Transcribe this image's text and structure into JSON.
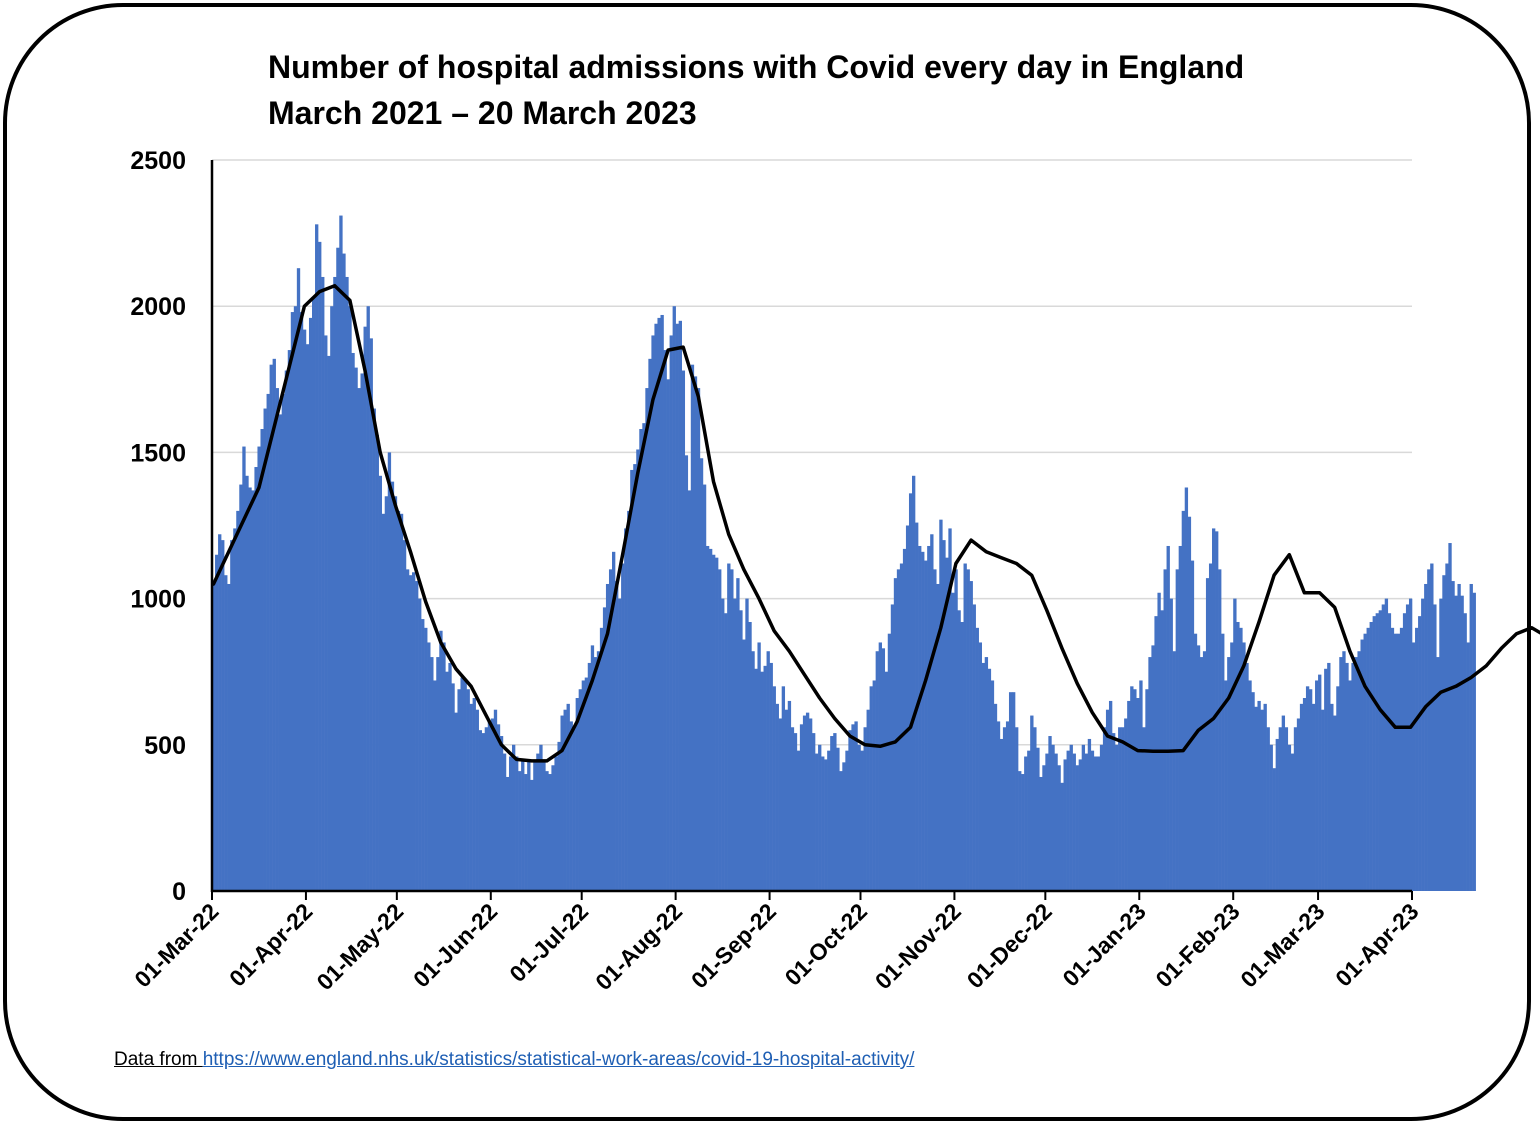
{
  "title_line1": "Number of hospital admissions with Covid every day in England",
  "title_line2": "March 2021 – 20 March 2023",
  "source": {
    "label": "Data from ",
    "url_text": "https://www.england.nhs.uk/statistics/statistical-work-areas/covid-19-hospital-activity/"
  },
  "colors": {
    "bars": "#4472C4",
    "line": "#000000",
    "grid": "#d9d9d9"
  },
  "chart_data": {
    "type": "bar",
    "overlay": "line (rolling average)",
    "x_range": [
      "2022-03-01",
      "2023-04-01"
    ],
    "bars_through": "2023-03-20",
    "ylim": [
      0,
      2500
    ],
    "y_ticks": [
      "0",
      "500",
      "1000",
      "1500",
      "2000",
      "2500"
    ],
    "x_ticks": [
      {
        "date": "2022-03-01",
        "label": "01-Mar-22"
      },
      {
        "date": "2022-04-01",
        "label": "01-Apr-22"
      },
      {
        "date": "2022-05-01",
        "label": "01-May-22"
      },
      {
        "date": "2022-06-01",
        "label": "01-Jun-22"
      },
      {
        "date": "2022-07-01",
        "label": "01-Jul-22"
      },
      {
        "date": "2022-08-01",
        "label": "01-Aug-22"
      },
      {
        "date": "2022-09-01",
        "label": "01-Sep-22"
      },
      {
        "date": "2022-10-01",
        "label": "01-Oct-22"
      },
      {
        "date": "2022-11-01",
        "label": "01-Nov-22"
      },
      {
        "date": "2022-12-01",
        "label": "01-Dec-22"
      },
      {
        "date": "2023-01-01",
        "label": "01-Jan-23"
      },
      {
        "date": "2023-02-01",
        "label": "01-Feb-23"
      },
      {
        "date": "2023-03-01",
        "label": "01-Mar-23"
      },
      {
        "date": "2023-04-01",
        "label": "01-Apr-23"
      }
    ],
    "grid": true,
    "legend": "none",
    "daily_admissions_approx": [
      1050,
      1150,
      1220,
      1200,
      1080,
      1050,
      1200,
      1240,
      1300,
      1390,
      1520,
      1420,
      1380,
      1370,
      1450,
      1520,
      1580,
      1650,
      1700,
      1800,
      1820,
      1720,
      1630,
      1700,
      1780,
      1850,
      1980,
      2000,
      2130,
      1980,
      1920,
      1870,
      1960,
      2030,
      2280,
      2220,
      2100,
      1900,
      1830,
      2000,
      2100,
      2200,
      2310,
      2180,
      2100,
      2000,
      1840,
      1790,
      1720,
      1770,
      1930,
      2000,
      1890,
      1650,
      1560,
      1420,
      1290,
      1350,
      1500,
      1400,
      1350,
      1300,
      1290,
      1200,
      1100,
      1080,
      1090,
      1060,
      1000,
      930,
      900,
      850,
      800,
      720,
      800,
      890,
      850,
      750,
      780,
      710,
      610,
      690,
      730,
      720,
      690,
      640,
      660,
      620,
      550,
      540,
      560,
      580,
      590,
      620,
      570,
      530,
      470,
      390,
      460,
      500,
      460,
      410,
      450,
      400,
      450,
      380,
      440,
      470,
      500,
      450,
      410,
      400,
      430,
      460,
      510,
      600,
      620,
      640,
      580,
      560,
      660,
      690,
      720,
      730,
      780,
      840,
      800,
      820,
      900,
      970,
      1050,
      1100,
      1160,
      1060,
      1000,
      1120,
      1240,
      1300,
      1440,
      1460,
      1510,
      1580,
      1600,
      1720,
      1820,
      1900,
      1940,
      1960,
      1970,
      1850,
      1750,
      1900,
      2000,
      1940,
      1950,
      1780,
      1490,
      1370,
      1800,
      1760,
      1720,
      1480,
      1390,
      1180,
      1170,
      1150,
      1140,
      1100,
      1000,
      950,
      1120,
      1100,
      1000,
      1070,
      960,
      860,
      1000,
      920,
      820,
      760,
      850,
      750,
      770,
      820,
      780,
      700,
      640,
      590,
      700,
      620,
      650,
      560,
      540,
      480,
      570,
      600,
      610,
      590,
      540,
      470,
      500,
      460,
      450,
      480,
      530,
      540,
      490,
      410,
      440,
      480,
      550,
      570,
      580,
      500,
      480,
      560,
      620,
      700,
      720,
      820,
      850,
      830,
      750,
      880,
      980,
      1070,
      1100,
      1120,
      1170,
      1250,
      1360,
      1420,
      1260,
      1180,
      1160,
      1130,
      1180,
      1220,
      1100,
      1050,
      1270,
      1200,
      1140,
      1240,
      1020,
      1100,
      960,
      920,
      1120,
      1100,
      1060,
      980,
      900,
      850,
      780,
      800,
      760,
      720,
      640,
      580,
      520,
      560,
      580,
      680,
      680,
      560,
      410,
      400,
      460,
      480,
      600,
      560,
      490,
      390,
      430,
      470,
      530,
      500,
      470,
      430,
      370,
      450,
      480,
      500,
      470,
      430,
      450,
      500,
      470,
      520,
      480,
      460,
      460,
      500,
      560,
      620,
      650,
      540,
      500,
      560,
      560,
      590,
      650,
      700,
      690,
      660,
      720,
      560,
      690,
      800,
      840,
      940,
      1020,
      960,
      1100,
      1180,
      1000,
      820,
      1100,
      1180,
      1300,
      1380,
      1280,
      1130,
      880,
      840,
      800,
      820,
      1070,
      1120,
      1240,
      1230,
      1100,
      880,
      720,
      800,
      850,
      1000,
      920,
      900,
      850,
      780,
      720,
      680,
      630,
      650,
      620,
      640,
      560,
      500,
      420,
      520,
      560,
      600,
      560,
      500,
      470,
      560,
      590,
      640,
      660,
      700,
      690,
      640,
      720,
      740,
      620,
      760,
      780,
      640,
      600,
      700,
      800,
      820,
      780,
      720,
      780,
      800,
      820,
      860,
      880,
      900,
      920,
      940,
      950,
      960,
      980,
      1000,
      950,
      900,
      880,
      880,
      900,
      950,
      980,
      1000,
      850,
      900,
      940,
      1000,
      1050,
      1100,
      1120,
      980,
      800,
      1000,
      1080,
      1120,
      1190,
      1060,
      1010,
      1050,
      1010,
      950,
      850,
      1050,
      1020
    ],
    "rolling_average_approx": [
      [
        0,
        1050
      ],
      [
        15,
        1380
      ],
      [
        30,
        2000
      ],
      [
        35,
        2050
      ],
      [
        40,
        2070
      ],
      [
        45,
        2020
      ],
      [
        50,
        1780
      ],
      [
        55,
        1500
      ],
      [
        60,
        1320
      ],
      [
        65,
        1160
      ],
      [
        70,
        990
      ],
      [
        75,
        850
      ],
      [
        80,
        760
      ],
      [
        85,
        700
      ],
      [
        90,
        600
      ],
      [
        95,
        500
      ],
      [
        100,
        450
      ],
      [
        105,
        445
      ],
      [
        110,
        445
      ],
      [
        115,
        480
      ],
      [
        120,
        580
      ],
      [
        125,
        720
      ],
      [
        130,
        880
      ],
      [
        135,
        1150
      ],
      [
        140,
        1430
      ],
      [
        145,
        1680
      ],
      [
        150,
        1850
      ],
      [
        155,
        1860
      ],
      [
        160,
        1690
      ],
      [
        165,
        1400
      ],
      [
        170,
        1220
      ],
      [
        175,
        1100
      ],
      [
        180,
        1000
      ],
      [
        185,
        890
      ],
      [
        190,
        820
      ],
      [
        195,
        740
      ],
      [
        200,
        660
      ],
      [
        205,
        590
      ],
      [
        210,
        530
      ],
      [
        215,
        500
      ],
      [
        220,
        495
      ],
      [
        225,
        510
      ],
      [
        230,
        560
      ],
      [
        235,
        720
      ],
      [
        240,
        900
      ],
      [
        245,
        1120
      ],
      [
        250,
        1200
      ],
      [
        255,
        1160
      ],
      [
        260,
        1140
      ],
      [
        265,
        1120
      ],
      [
        270,
        1080
      ],
      [
        275,
        960
      ],
      [
        280,
        830
      ],
      [
        285,
        710
      ],
      [
        290,
        610
      ],
      [
        295,
        530
      ],
      [
        300,
        510
      ],
      [
        305,
        480
      ],
      [
        310,
        478
      ],
      [
        315,
        478
      ],
      [
        320,
        480
      ],
      [
        325,
        550
      ],
      [
        330,
        590
      ],
      [
        335,
        660
      ],
      [
        340,
        770
      ],
      [
        345,
        920
      ],
      [
        350,
        1080
      ],
      [
        355,
        1150
      ],
      [
        360,
        1020
      ],
      [
        365,
        1020
      ],
      [
        370,
        970
      ],
      [
        375,
        820
      ],
      [
        380,
        700
      ],
      [
        385,
        620
      ],
      [
        390,
        560
      ],
      [
        395,
        560
      ],
      [
        400,
        630
      ],
      [
        405,
        680
      ],
      [
        410,
        700
      ],
      [
        415,
        730
      ],
      [
        420,
        770
      ],
      [
        425,
        830
      ],
      [
        430,
        880
      ],
      [
        435,
        900
      ],
      [
        440,
        870
      ],
      [
        445,
        850
      ],
      [
        450,
        860
      ],
      [
        455,
        900
      ],
      [
        460,
        950
      ],
      [
        465,
        1000
      ],
      [
        470,
        1020
      ],
      [
        475,
        1000
      ],
      [
        479,
        990
      ]
    ]
  }
}
